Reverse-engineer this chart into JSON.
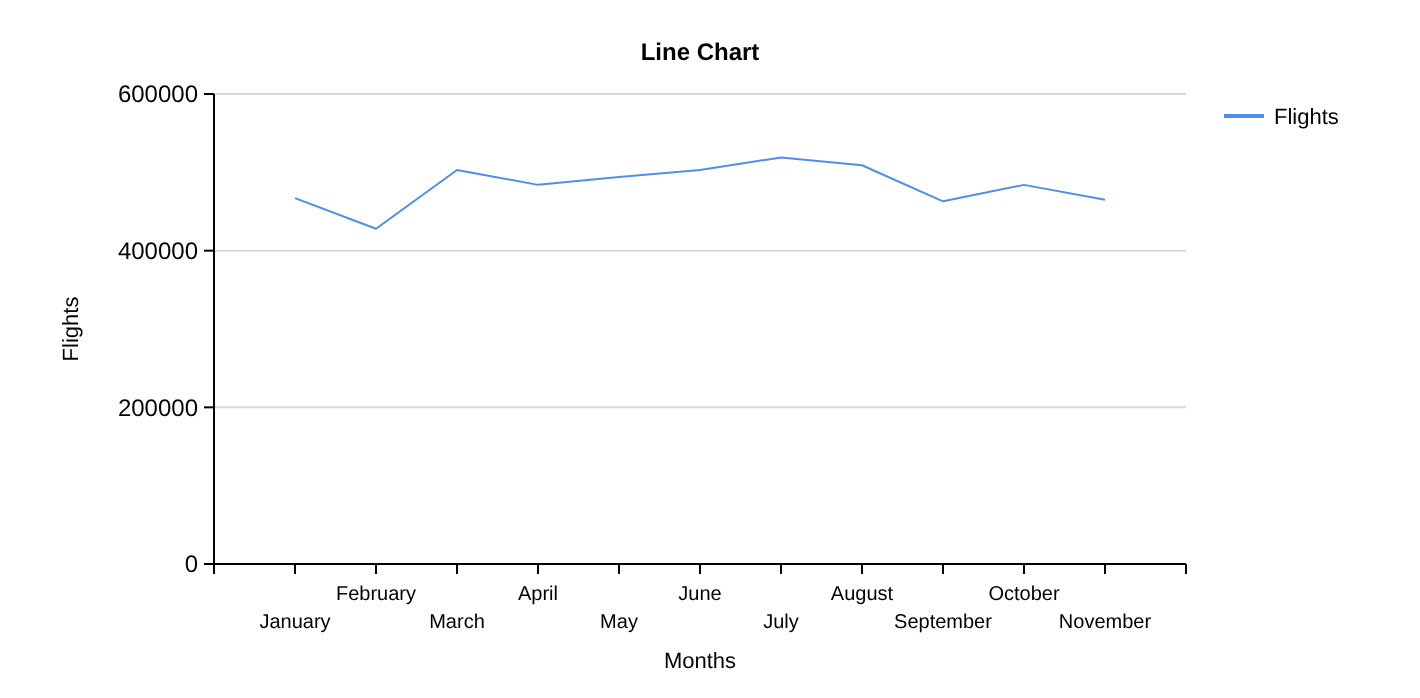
{
  "chart_data": {
    "type": "line",
    "title": "Line Chart",
    "xlabel": "Months",
    "ylabel": "Flights",
    "categories": [
      "January",
      "February",
      "March",
      "April",
      "May",
      "June",
      "July",
      "August",
      "September",
      "October",
      "November"
    ],
    "series": [
      {
        "name": "Flights",
        "color": "#4f8fea",
        "values": [
          467000,
          428000,
          503000,
          484000,
          494000,
          503000,
          519000,
          509000,
          463000,
          484000,
          465000
        ]
      }
    ],
    "ylim": [
      0,
      600000
    ],
    "yticks": [
      0,
      200000,
      400000,
      600000
    ],
    "grid": "y",
    "legend": "top right"
  }
}
